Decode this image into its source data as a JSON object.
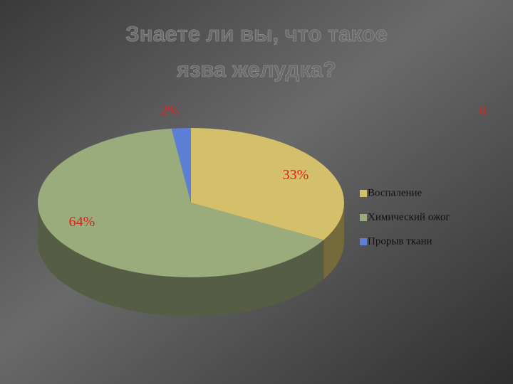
{
  "chart_data": {
    "type": "pie",
    "title": "Знаете ли вы, что такое язва желудка?",
    "categories": [
      "Воспаление",
      "Химический ожог",
      "Прорыв ткани"
    ],
    "values": [
      33,
      64,
      2
    ],
    "value_labels": [
      "33%",
      "64%",
      "2%"
    ],
    "colors": [
      "#d4c06a",
      "#9aab7c",
      "#5b80d6"
    ],
    "annotation": "0",
    "legend": "right"
  }
}
